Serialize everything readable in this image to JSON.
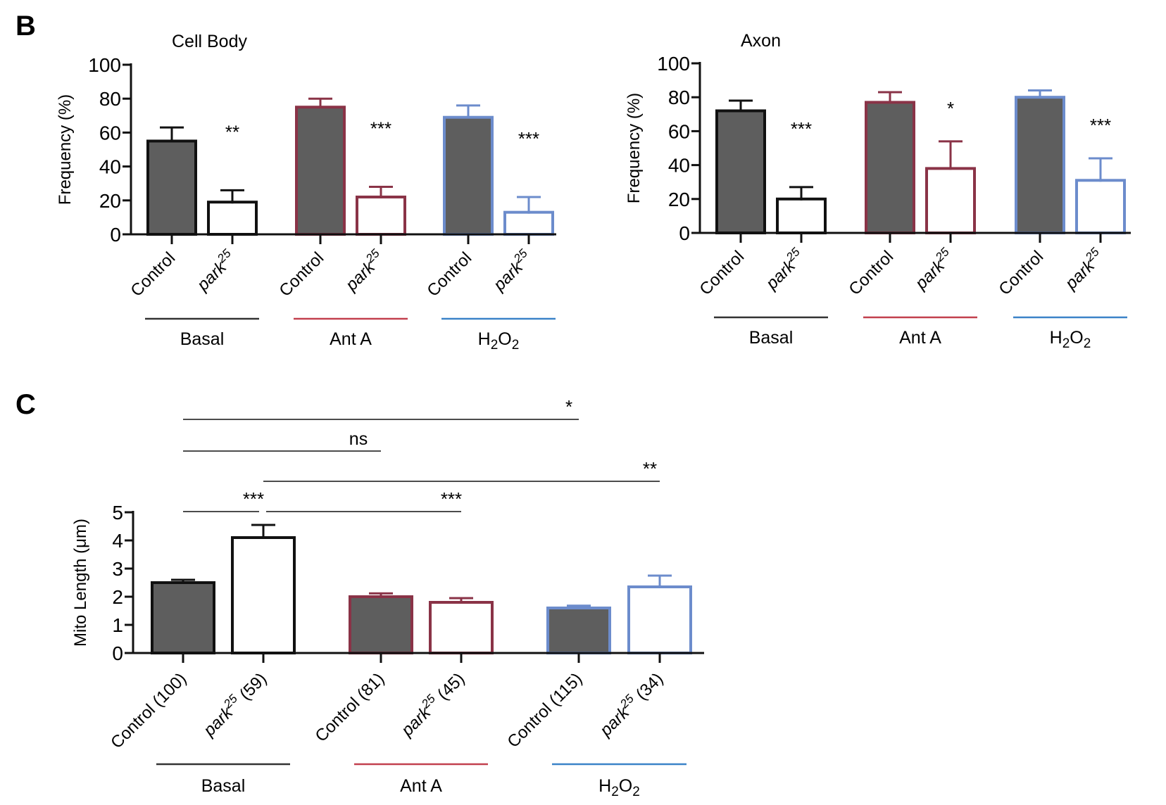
{
  "colors": {
    "basal": "#111111",
    "ant_a": "#8a3347",
    "h2o2": "#6c8ccc",
    "fill_control": "#5e5e5e",
    "fill_mutant": "#ffffff",
    "underline_basal": "#333333",
    "underline_ant_a": "#c2404e",
    "underline_h2o2": "#3b83c8"
  },
  "panels": {
    "b": {
      "letter": "B"
    },
    "c": {
      "letter": "C"
    }
  },
  "chart_data": [
    {
      "type": "bar",
      "title": "Cell Body",
      "ylabel": "Frequency (%)",
      "ylim": [
        0,
        100
      ],
      "yticks": [
        "0",
        "20",
        "40",
        "60",
        "80",
        "100"
      ],
      "groups": [
        "Basal",
        "Ant A",
        "H2O2"
      ],
      "categories": [
        {
          "label": "Control",
          "mutant": false
        },
        {
          "label": "park",
          "sup": "25",
          "mutant": true
        },
        {
          "label": "Control",
          "mutant": false
        },
        {
          "label": "park",
          "sup": "25",
          "mutant": true
        },
        {
          "label": "Control",
          "mutant": false
        },
        {
          "label": "park",
          "sup": "25",
          "mutant": true
        }
      ],
      "values": [
        55,
        19,
        75,
        22,
        69,
        13
      ],
      "errors": [
        8,
        7,
        5,
        6,
        7,
        9
      ],
      "significance": [
        "",
        "**",
        "",
        "***",
        "",
        "***"
      ]
    },
    {
      "type": "bar",
      "title": "Axon",
      "ylabel": "Frequency (%)",
      "ylim": [
        0,
        100
      ],
      "yticks": [
        "0",
        "20",
        "40",
        "60",
        "80",
        "100"
      ],
      "groups": [
        "Basal",
        "Ant A",
        "H2O2"
      ],
      "categories": [
        {
          "label": "Control",
          "mutant": false
        },
        {
          "label": "park",
          "sup": "25",
          "mutant": true
        },
        {
          "label": "Control",
          "mutant": false
        },
        {
          "label": "park",
          "sup": "25",
          "mutant": true
        },
        {
          "label": "Control",
          "mutant": false
        },
        {
          "label": "park",
          "sup": "25",
          "mutant": true
        }
      ],
      "values": [
        72,
        20,
        77,
        38,
        80,
        31
      ],
      "errors": [
        6,
        7,
        6,
        16,
        4,
        13
      ],
      "significance": [
        "",
        "***",
        "",
        "*",
        "",
        "***"
      ]
    },
    {
      "type": "bar",
      "title": "",
      "ylabel": "Mito Length (μm)",
      "ylim": [
        0,
        5
      ],
      "yticks": [
        "0",
        "1",
        "2",
        "3",
        "4",
        "5"
      ],
      "groups": [
        "Basal",
        "Ant A",
        "H2O2"
      ],
      "categories": [
        {
          "label": "Control (100)",
          "mutant": false
        },
        {
          "label": "park",
          "sup": "25",
          "suffix": " (59)",
          "mutant": true
        },
        {
          "label": "Control (81)",
          "mutant": false
        },
        {
          "label": "park",
          "sup": "25",
          "suffix": " (45)",
          "mutant": true
        },
        {
          "label": "Control (115)",
          "mutant": false
        },
        {
          "label": "park",
          "sup": "25",
          "suffix": " (34)",
          "mutant": true
        }
      ],
      "values": [
        2.5,
        4.1,
        2.0,
        1.8,
        1.6,
        2.35
      ],
      "errors": [
        0.1,
        0.45,
        0.12,
        0.15,
        0.08,
        0.4
      ],
      "comparisons": [
        {
          "from": 0,
          "to": 4,
          "label": "*"
        },
        {
          "from": 0,
          "to": 2,
          "label": "ns"
        },
        {
          "from": 1,
          "to": 5,
          "label": "**"
        },
        {
          "from": 0,
          "to": 1,
          "label": "***"
        },
        {
          "from": 1,
          "to": 3,
          "label": "***"
        }
      ]
    }
  ]
}
